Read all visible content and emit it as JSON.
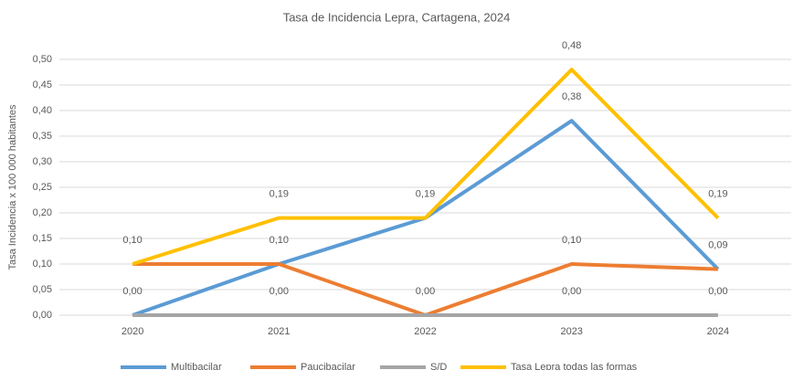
{
  "chart_data": {
    "type": "line",
    "title": "Tasa de Incidencia  Lepra, Cartagena, 2024",
    "y_label": "Tasa Incidencia x 100 000 habitantes",
    "categories": [
      "2020",
      "2021",
      "2022",
      "2023",
      "2024"
    ],
    "ylim": [
      0,
      0.5
    ],
    "yticks": [
      {
        "value": 0,
        "label": "0,00"
      },
      {
        "value": 0.05,
        "label": "0,05"
      },
      {
        "value": 0.1,
        "label": "0,10"
      },
      {
        "value": 0.15,
        "label": "0,15"
      },
      {
        "value": 0.2,
        "label": "0,20"
      },
      {
        "value": 0.25,
        "label": "0,25"
      },
      {
        "value": 0.3,
        "label": "0,30"
      },
      {
        "value": 0.35,
        "label": "0,35"
      },
      {
        "value": 0.4,
        "label": "0,40"
      },
      {
        "value": 0.45,
        "label": "0,45"
      },
      {
        "value": 0.5,
        "label": "0,50"
      }
    ],
    "grid": true,
    "legend": "bottom",
    "series": [
      {
        "name": "Multibacilar",
        "color": "#5b9bd5",
        "values": [
          0,
          0.1,
          0.19,
          0.38,
          0.09
        ],
        "value_labels": [
          "0,00",
          "0,10",
          null,
          "0,38",
          "0,09"
        ]
      },
      {
        "name": "Paucibacilar",
        "color": "#ed7d31",
        "values": [
          0.1,
          0.1,
          0,
          0.1,
          0.09
        ],
        "value_labels": [
          null,
          null,
          "0,00",
          "0,10",
          null
        ]
      },
      {
        "name": "S/D",
        "color": "#a5a5a5",
        "values": [
          0,
          0,
          0,
          0,
          0
        ],
        "value_labels": [
          null,
          "0,00",
          null,
          "0,00",
          "0,00"
        ]
      },
      {
        "name": "Tasa Lepra todas las formas",
        "color": "#ffc000",
        "values": [
          0.1,
          0.19,
          0.19,
          0.48,
          0.19
        ],
        "value_labels": [
          "0,10",
          "0,19",
          "0,19",
          "0,48",
          "0,19"
        ]
      }
    ]
  }
}
